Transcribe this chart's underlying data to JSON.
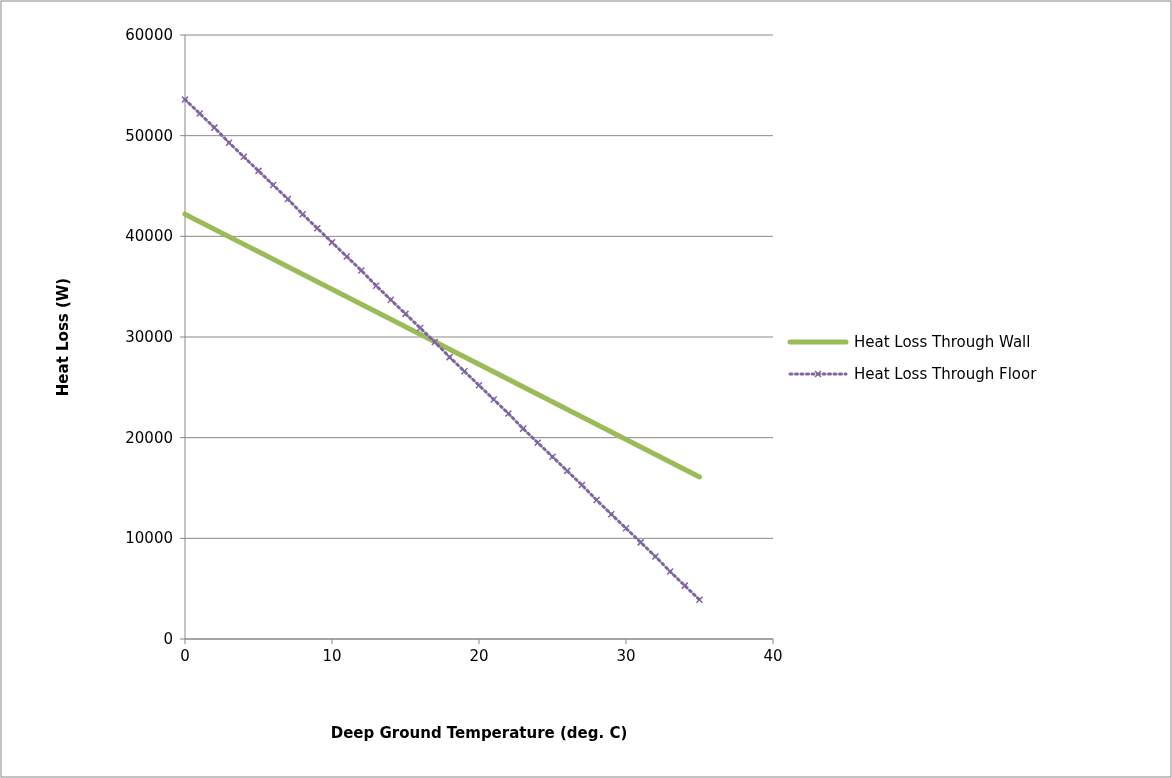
{
  "chart_data": {
    "type": "line",
    "xlabel": "Deep Ground Temperature (deg. C)",
    "ylabel": "Heat Loss (W)",
    "xlim": [
      0,
      40
    ],
    "xticks": [
      0,
      10,
      20,
      30,
      40
    ],
    "ylim": [
      0,
      60000
    ],
    "yticks": [
      0,
      10000,
      20000,
      30000,
      40000,
      50000,
      60000
    ],
    "grid": "y",
    "legend": "right",
    "series": [
      {
        "name": "Heat Loss Through Wall",
        "color": "#9bbb59",
        "line_style": "solid",
        "marker": "none",
        "x": [
          0,
          35
        ],
        "values": [
          42200,
          16100
        ]
      },
      {
        "name": "Heat Loss Through Floor",
        "color": "#8064a2",
        "line_style": "dotted",
        "marker": "cross",
        "x": [
          0,
          1,
          2,
          3,
          4,
          5,
          6,
          7,
          8,
          9,
          10,
          11,
          12,
          13,
          14,
          15,
          16,
          17,
          18,
          19,
          20,
          21,
          22,
          23,
          24,
          25,
          26,
          27,
          28,
          29,
          30,
          31,
          32,
          33,
          34,
          35
        ],
        "values": [
          53600,
          52200,
          50800,
          49300,
          47900,
          46500,
          45100,
          43700,
          42200,
          40800,
          39400,
          38000,
          36600,
          35100,
          33700,
          32300,
          30900,
          29500,
          28000,
          26600,
          25200,
          23800,
          22400,
          20900,
          19500,
          18100,
          16700,
          15300,
          13800,
          12400,
          11000,
          9600,
          8200,
          6700,
          5300,
          3900
        ]
      }
    ]
  }
}
